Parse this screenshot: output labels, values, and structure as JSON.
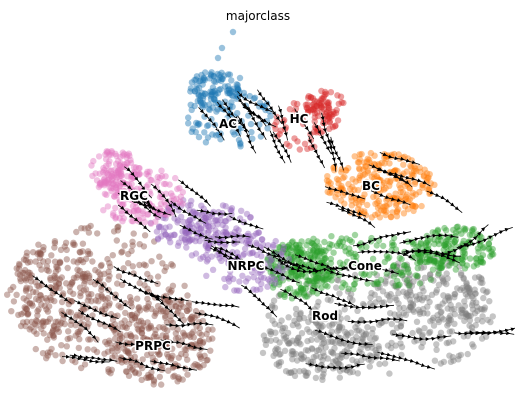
{
  "chart_data": {
    "type": "scatter",
    "title": "majorclass",
    "xlabel": "",
    "ylabel": "",
    "grid": false,
    "legend": "on data",
    "overlay": "velocity streamlines with arrowheads",
    "point_alpha": 0.45,
    "groups": [
      {
        "name": "AC",
        "color": "#1f77b4"
      },
      {
        "name": "HC",
        "color": "#d62728"
      },
      {
        "name": "BC",
        "color": "#ff7f0e"
      },
      {
        "name": "RGC",
        "color": "#e377c2"
      },
      {
        "name": "NRPC",
        "color": "#9467bd"
      },
      {
        "name": "Cone",
        "color": "#2ca02c"
      },
      {
        "name": "Rod",
        "color": "#7f7f7f"
      },
      {
        "name": "PRPC",
        "color": "#8c564b"
      }
    ]
  }
}
